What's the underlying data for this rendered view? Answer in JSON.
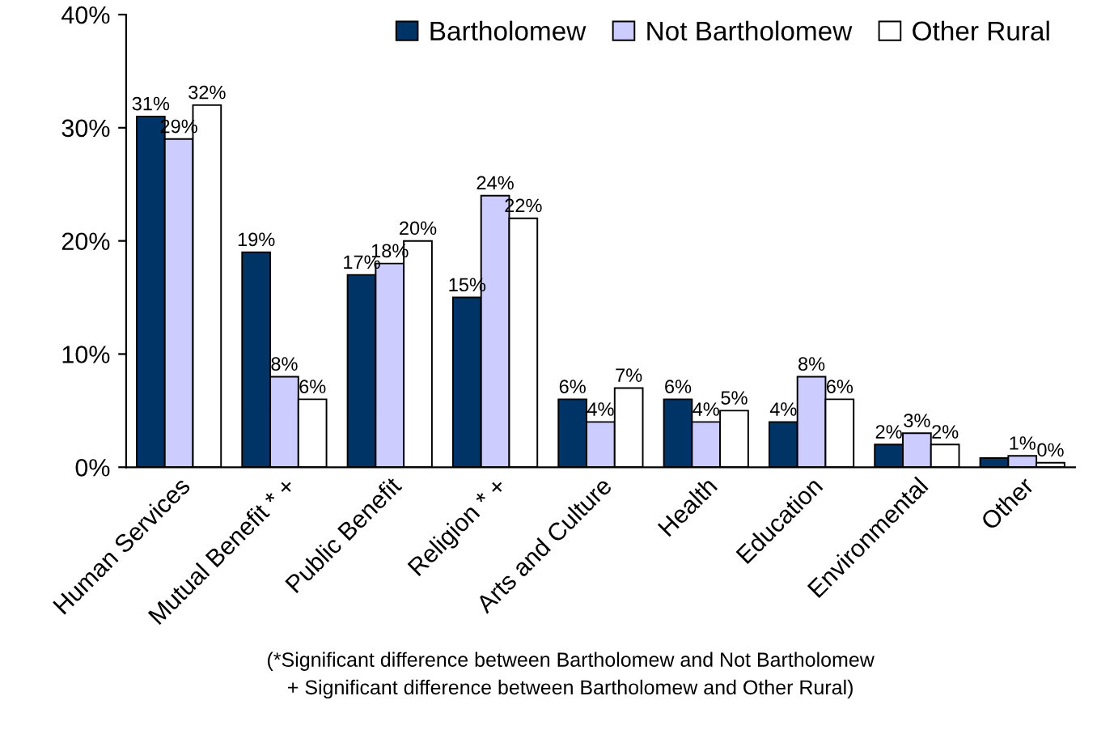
{
  "chart_data": {
    "type": "bar",
    "categories": [
      "Human Services",
      "Mutual Benefit * +",
      "Public Benefit",
      "Religion * +",
      "Arts and Culture",
      "Health",
      "Education",
      "Environmental",
      "Other"
    ],
    "series": [
      {
        "name": "Bartholomew",
        "color": "#003366",
        "values": [
          31,
          19,
          17,
          15,
          6,
          6,
          4,
          2,
          0.8
        ],
        "value_labels": [
          "31%",
          "19%",
          "17%",
          "15%",
          "6%",
          "6%",
          "4%",
          "2%",
          null
        ]
      },
      {
        "name": "Not Bartholomew",
        "color": "#ccccff",
        "values": [
          29,
          8,
          18,
          24,
          4,
          4,
          8,
          3,
          1
        ],
        "value_labels": [
          "29%",
          "8%",
          "18%",
          "24%",
          "4%",
          "4%",
          "8%",
          "3%",
          "1%"
        ]
      },
      {
        "name": "Other Rural",
        "color": "#ffffff",
        "values": [
          32,
          6,
          20,
          22,
          7,
          5,
          6,
          2,
          0.4
        ],
        "value_labels": [
          "32%",
          "6%",
          "20%",
          "22%",
          "7%",
          "5%",
          "6%",
          "2%",
          "0%"
        ]
      }
    ],
    "ylim": [
      0,
      40
    ],
    "yticks": [
      {
        "value": 0,
        "label": "0%"
      },
      {
        "value": 10,
        "label": "10%"
      },
      {
        "value": 20,
        "label": "20%"
      },
      {
        "value": 30,
        "label": "30%"
      },
      {
        "value": 40,
        "label": "40%"
      }
    ],
    "grid": false,
    "legend": "top right",
    "annotations": [
      "(*Significant difference between Bartholomew and Not Bartholomew\n+ Significant difference between Bartholomew and Other Rural)"
    ]
  }
}
